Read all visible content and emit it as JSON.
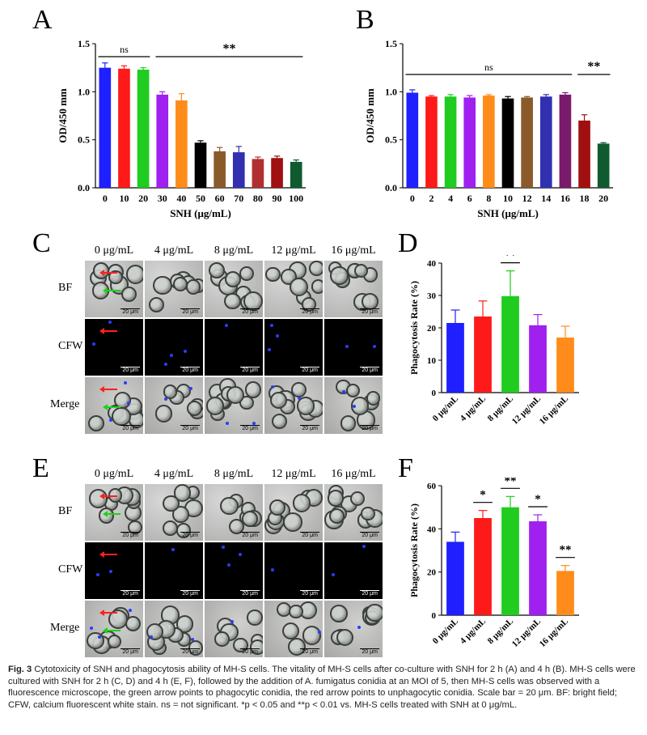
{
  "panels": {
    "A": "A",
    "B": "B",
    "C": "C",
    "D": "D",
    "E": "E",
    "F": "F"
  },
  "chartA": {
    "type": "bar",
    "ylabel": "OD/450 mm",
    "xlabel": "SNH (μg/mL)",
    "ylim": [
      0,
      1.5
    ],
    "yticks": [
      "0.0",
      "0.5",
      "1.0",
      "1.5"
    ],
    "categories": [
      "0",
      "10",
      "20",
      "30",
      "40",
      "50",
      "60",
      "70",
      "80",
      "90",
      "100"
    ],
    "values": [
      1.25,
      1.24,
      1.23,
      0.97,
      0.91,
      0.47,
      0.38,
      0.37,
      0.3,
      0.31,
      0.27
    ],
    "errors": [
      0.05,
      0.03,
      0.02,
      0.03,
      0.07,
      0.02,
      0.04,
      0.06,
      0.02,
      0.02,
      0.02
    ],
    "colors": [
      "#1f1fff",
      "#ff1a1a",
      "#1fcc1f",
      "#a020f0",
      "#ff8c1a",
      "#000000",
      "#8a5a2b",
      "#3030b0",
      "#b03030",
      "#a01010",
      "#105a30"
    ],
    "sig": [
      {
        "label": "ns",
        "from": 0,
        "to": 2
      },
      {
        "label": "**",
        "from": 3,
        "to": 10
      }
    ]
  },
  "chartB": {
    "type": "bar",
    "ylabel": "OD/450 mm",
    "xlabel": "SNH (μg/mL)",
    "ylim": [
      0,
      1.5
    ],
    "yticks": [
      "0.0",
      "0.5",
      "1.0",
      "1.5"
    ],
    "categories": [
      "0",
      "2",
      "4",
      "6",
      "8",
      "10",
      "12",
      "14",
      "16",
      "18",
      "20"
    ],
    "values": [
      0.99,
      0.95,
      0.95,
      0.94,
      0.96,
      0.93,
      0.94,
      0.95,
      0.97,
      0.7,
      0.46
    ],
    "errors": [
      0.03,
      0.01,
      0.02,
      0.02,
      0.01,
      0.02,
      0.01,
      0.02,
      0.02,
      0.06,
      0.01
    ],
    "colors": [
      "#1f1fff",
      "#ff1a1a",
      "#1fcc1f",
      "#a020f0",
      "#ff8c1a",
      "#000000",
      "#8a5a2b",
      "#3030b0",
      "#7a1a6a",
      "#a01010",
      "#105a30"
    ],
    "sig": [
      {
        "label": "ns",
        "from": 0,
        "to": 8
      },
      {
        "label": "**",
        "from": 9,
        "to": 10
      }
    ]
  },
  "chartD": {
    "type": "bar",
    "ylabel": "Phagocytosis Rate (%)",
    "ylim": [
      0,
      40
    ],
    "yticks": [
      "0",
      "10",
      "20",
      "30",
      "40"
    ],
    "categories": [
      "0 μg/mL",
      "4 μg/mL",
      "8 μg/mL",
      "12 μg/mL",
      "16 μg/mL"
    ],
    "values": [
      21.5,
      23.5,
      29.8,
      20.8,
      17.0
    ],
    "errors": [
      4.0,
      4.8,
      7.8,
      3.3,
      3.5
    ],
    "colors": [
      "#1f1fff",
      "#ff1a1a",
      "#1fcc1f",
      "#a020f0",
      "#ff8c1a"
    ],
    "sig": [
      {
        "label": "**",
        "from": 2,
        "to": 2
      }
    ]
  },
  "chartF": {
    "type": "bar",
    "ylabel": "Phagocytosis Rate (%)",
    "ylim": [
      0,
      60
    ],
    "yticks": [
      "0",
      "20",
      "40",
      "60"
    ],
    "categories": [
      "0 μg/mL",
      "4 μg/mL",
      "8 μg/mL",
      "12 μg/mL",
      "16 μg/mL"
    ],
    "values": [
      34.0,
      45.0,
      50.0,
      43.5,
      20.5
    ],
    "errors": [
      4.5,
      3.5,
      5.0,
      3.0,
      2.5
    ],
    "colors": [
      "#1f1fff",
      "#ff1a1a",
      "#1fcc1f",
      "#a020f0",
      "#ff8c1a"
    ],
    "sig": [
      {
        "label": "*",
        "from": 1,
        "to": 1
      },
      {
        "label": "**",
        "from": 2,
        "to": 2
      },
      {
        "label": "*",
        "from": 3,
        "to": 3
      },
      {
        "label": "**",
        "from": 4,
        "to": 4
      }
    ]
  },
  "micro": {
    "columns": [
      "0 μg/mL",
      "4 μg/mL",
      "8 μg/mL",
      "12 μg/mL",
      "16 μg/mL"
    ],
    "rows": [
      "BF",
      "CFW",
      "Merge"
    ],
    "scale": "20 μm"
  },
  "caption": {
    "fig": "Fig. 3",
    "text": "Cytotoxicity of SNH and phagocytosis ability of MH-S cells. The vitality of MH-S cells after co-culture with SNH for 2 h (A) and 4 h (B). MH-S cells were cultured with SNH for 2 h (C, D) and 4 h (E, F), followed by the addition of A. fumigatus conidia at an MOI of 5, then MH-S cells was observed with a fluorescence microscope, the green arrow points to phagocytic conidia, the red arrow points to unphagocytic conidia. Scale bar = 20 μm. BF: bright field; CFW, calcium fluorescent white stain. ns = not significant. *p < 0.05 and **p < 0.01 vs. MH-S cells treated with SNH at 0 μg/mL."
  }
}
